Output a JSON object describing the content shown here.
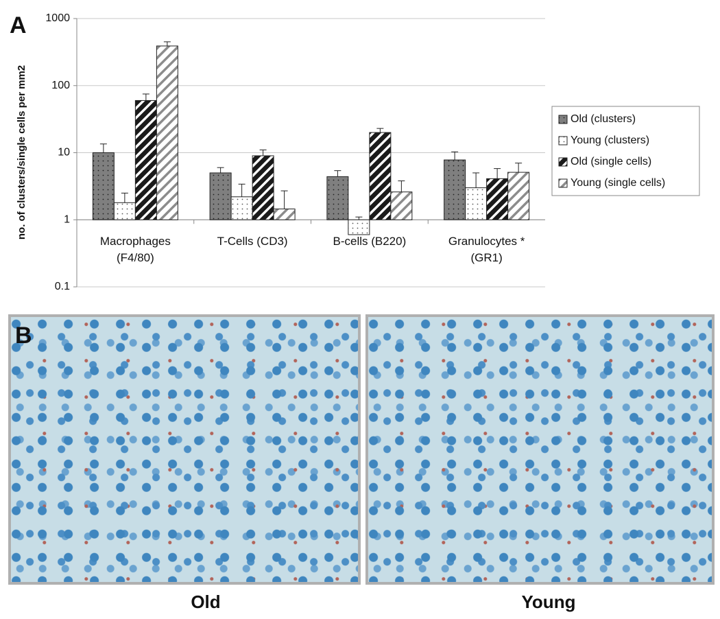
{
  "chart_data": {
    "type": "bar",
    "panel_label": "A",
    "ylabel": "no. of  clusters/single cells per mm2",
    "categories": [
      "Macrophages (F4/80)",
      "T-Cells (CD3)",
      "B-cells (B220)",
      "Granulocytes * (GR1)"
    ],
    "series": [
      {
        "name": "Old (clusters)",
        "color": "#7f7f7f",
        "hatch": "dots",
        "hatch_color": "#222222",
        "values": [
          10,
          5,
          4.4,
          7.8
        ],
        "errors": [
          3.5,
          1,
          1,
          2.5
        ]
      },
      {
        "name": "Young (clusters)",
        "color": "#ffffff",
        "hatch": "dots",
        "hatch_color": "#555555",
        "values": [
          1.8,
          2.2,
          0.6,
          3
        ],
        "errors": [
          0.7,
          1.2,
          0.5,
          2
        ]
      },
      {
        "name": "Old (single cells)",
        "color": "#1a1a1a",
        "hatch": "stripes",
        "hatch_color": "#ffffff",
        "values": [
          60,
          9,
          20,
          4.1
        ],
        "errors": [
          15,
          2,
          3,
          1.7
        ]
      },
      {
        "name": "Young (single cells)",
        "color": "#ffffff",
        "hatch": "stripes",
        "hatch_color": "#8c8c8c",
        "values": [
          390,
          1.45,
          2.6,
          5.1
        ],
        "errors": [
          60,
          1.25,
          1.2,
          1.9
        ]
      }
    ],
    "log_scale": true,
    "ylim": [
      0.1,
      1000
    ],
    "yticks": [
      0.1,
      1,
      10,
      100,
      1000
    ],
    "grid": true,
    "legend": "right"
  },
  "micrographs": {
    "panel_label": "B",
    "left_caption": "Old",
    "right_caption": "Young"
  }
}
